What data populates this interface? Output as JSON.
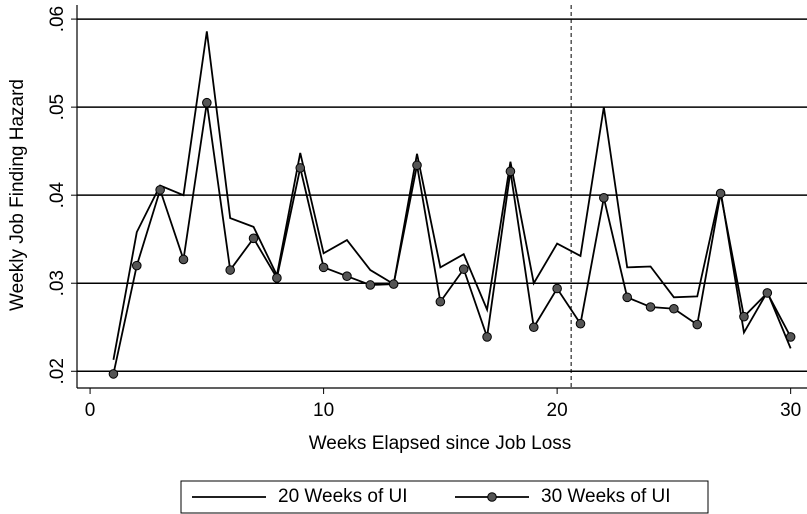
{
  "chart_data": {
    "type": "line",
    "x_label": "Weeks Elapsed since Job Loss",
    "y_label": "Weekly Job Finding Hazard",
    "x": [
      1,
      2,
      3,
      4,
      5,
      6,
      7,
      8,
      9,
      10,
      11,
      12,
      13,
      14,
      15,
      16,
      17,
      18,
      19,
      20,
      21,
      22,
      23,
      24,
      25,
      26,
      27,
      28,
      29,
      30
    ],
    "series": [
      {
        "name": "20 Weeks of UI",
        "color": "#000000",
        "marker": "none",
        "values": [
          0.0213,
          0.0358,
          0.0411,
          0.04,
          0.0586,
          0.0374,
          0.0364,
          0.0309,
          0.0448,
          0.0334,
          0.0349,
          0.0315,
          0.0299,
          0.0447,
          0.0318,
          0.0333,
          0.027,
          0.0438,
          0.03,
          0.0345,
          0.0331,
          0.05,
          0.0318,
          0.0319,
          0.0284,
          0.0285,
          0.0405,
          0.0244,
          0.029,
          0.0226
        ]
      },
      {
        "name": "30 Weeks of UI",
        "color": "#000000",
        "marker": "circle",
        "marker_color": "#555555",
        "values": [
          0.0197,
          0.032,
          0.0406,
          0.0327,
          0.0505,
          0.0315,
          0.0351,
          0.0306,
          0.0431,
          0.0318,
          0.0308,
          0.0298,
          0.0299,
          0.0434,
          0.0279,
          0.0316,
          0.0239,
          0.0427,
          0.025,
          0.0294,
          0.0254,
          0.0397,
          0.0284,
          0.0273,
          0.0271,
          0.0253,
          0.0402,
          0.0262,
          0.0289,
          0.0239
        ]
      }
    ],
    "xlim": [
      -0.56,
      30.7
    ],
    "ylim": [
      0.0181,
      0.0616
    ],
    "xticks": [
      0,
      10,
      20,
      30
    ],
    "yticks": [
      {
        "value": 0.02,
        "label": ".02"
      },
      {
        "value": 0.03,
        "label": ".03"
      },
      {
        "value": 0.04,
        "label": ".04"
      },
      {
        "value": 0.05,
        "label": ".05"
      },
      {
        "value": 0.06,
        "label": ".06"
      }
    ],
    "grid": true,
    "vline": 20.6,
    "legend": "bottom"
  }
}
